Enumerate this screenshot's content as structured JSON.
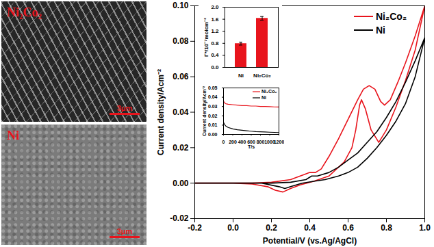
{
  "images": [
    {
      "label": "Ni₂Co₂",
      "scale_bar": "3μm"
    },
    {
      "label": "Ni",
      "scale_bar": "3μm"
    }
  ],
  "chart_data": [
    {
      "type": "line",
      "x_label": "Potential/V (vs.Ag/AgCl)",
      "y_label": "Current density/Acm⁻²",
      "xlim": [
        -0.2,
        1.0
      ],
      "xticks": [
        {
          "value": -0.2,
          "label": "-0.2"
        },
        {
          "value": 0.0,
          "label": "0.0"
        },
        {
          "value": 0.2,
          "label": "0.2"
        },
        {
          "value": 0.4,
          "label": "0.4"
        },
        {
          "value": 0.6,
          "label": "0.6"
        },
        {
          "value": 0.8,
          "label": "0.8"
        },
        {
          "value": 1.0,
          "label": "1.0"
        }
      ],
      "ylim": [
        -0.02,
        0.1
      ],
      "yticks": [
        {
          "value": -0.02,
          "label": "-0.02"
        },
        {
          "value": 0.0,
          "label": "0.00"
        },
        {
          "value": 0.02,
          "label": "0.02"
        },
        {
          "value": 0.04,
          "label": "0.04"
        },
        {
          "value": 0.06,
          "label": "0.06"
        },
        {
          "value": 0.08,
          "label": "0.08"
        },
        {
          "value": 0.1,
          "label": "0.10"
        }
      ],
      "legend": "top-right",
      "series": [
        {
          "name": "Ni₂Co₂",
          "color": "#e8141c",
          "x": [
            -0.2,
            -0.1,
            0.0,
            0.1,
            0.2,
            0.3,
            0.35,
            0.4,
            0.43,
            0.46,
            0.5,
            0.55,
            0.6,
            0.65,
            0.68,
            0.71,
            0.74,
            0.77,
            0.79,
            0.82,
            0.86,
            0.9,
            0.95,
            1.0,
            0.95,
            0.9,
            0.85,
            0.8,
            0.76,
            0.72,
            0.69,
            0.67,
            0.66,
            0.64,
            0.62,
            0.58,
            0.5,
            0.42,
            0.35,
            0.3,
            0.26,
            0.22,
            0.18,
            0.1,
            0.0,
            -0.2
          ],
          "values": [
            0,
            0,
            0,
            0,
            0.0005,
            0.002,
            0.004,
            0.006,
            0.006,
            0.008,
            0.015,
            0.025,
            0.036,
            0.047,
            0.053,
            0.055,
            0.053,
            0.046,
            0.044,
            0.047,
            0.057,
            0.068,
            0.083,
            0.1,
            0.075,
            0.058,
            0.043,
            0.03,
            0.023,
            0.03,
            0.042,
            0.047,
            0.044,
            0.03,
            0.02,
            0.012,
            0.004,
            0.001,
            -0.001,
            -0.003,
            -0.005,
            -0.004,
            -0.002,
            -0.0005,
            0,
            0
          ]
        },
        {
          "name": "Ni",
          "color": "#000000",
          "x": [
            -0.2,
            0.0,
            0.2,
            0.3,
            0.38,
            0.41,
            0.44,
            0.5,
            0.55,
            0.6,
            0.65,
            0.7,
            0.75,
            0.8,
            0.85,
            0.9,
            0.95,
            1.0,
            0.95,
            0.9,
            0.85,
            0.8,
            0.75,
            0.7,
            0.65,
            0.6,
            0.55,
            0.48,
            0.42,
            0.36,
            0.3,
            0.27,
            0.24,
            0.15,
            0.0,
            -0.2
          ],
          "values": [
            0,
            0,
            0,
            0.0005,
            0.002,
            0.004,
            0.004,
            0.006,
            0.009,
            0.013,
            0.017,
            0.023,
            0.029,
            0.037,
            0.046,
            0.057,
            0.069,
            0.082,
            0.06,
            0.045,
            0.035,
            0.027,
            0.02,
            0.014,
            0.009,
            0.006,
            0.004,
            0.002,
            0.001,
            0,
            -0.002,
            -0.003,
            -0.002,
            0,
            0,
            0
          ]
        }
      ]
    },
    {
      "type": "bar",
      "y_label": "Γ*/10⁻⁷molcm⁻²",
      "categories": [
        "Ni",
        "Ni₂Co₂"
      ],
      "values": [
        0.79,
        1.63
      ],
      "errors": [
        0.05,
        0.06
      ],
      "color": "#e8141c",
      "ylim": [
        0,
        2.0
      ],
      "yticks": [
        {
          "value": 0,
          "label": "0.0"
        },
        {
          "value": 0.4,
          "label": "0.4"
        },
        {
          "value": 0.8,
          "label": "0.8"
        },
        {
          "value": 1.2,
          "label": "1.2"
        },
        {
          "value": 1.6,
          "label": "1.6"
        },
        {
          "value": 2.0,
          "label": "2.0"
        }
      ]
    },
    {
      "type": "line",
      "x_label": "T/s",
      "y_label": "Current density/Acm⁻²",
      "x": [
        0,
        20,
        50,
        100,
        200,
        300,
        400,
        500,
        600,
        700,
        800,
        900,
        1000,
        1100,
        1200
      ],
      "xlim": [
        0,
        1200
      ],
      "xticks": [
        0,
        200,
        400,
        600,
        800,
        1000,
        1200
      ],
      "ylim": [
        0,
        0.05
      ],
      "yticks": [
        {
          "value": 0,
          "label": "0.00"
        },
        {
          "value": 0.01,
          "label": "0.01"
        },
        {
          "value": 0.02,
          "label": "0.02"
        },
        {
          "value": 0.03,
          "label": "0.03"
        },
        {
          "value": 0.04,
          "label": "0.04"
        },
        {
          "value": 0.05,
          "label": "0.05"
        }
      ],
      "legend": "top-right",
      "series": [
        {
          "name": "Ni₂Co₂",
          "color": "#e8141c",
          "values": [
            0.036,
            0.034,
            0.033,
            0.0325,
            0.032,
            0.0315,
            0.031,
            0.031,
            0.0305,
            0.0305,
            0.03,
            0.03,
            0.0298,
            0.0296,
            0.0295
          ]
        },
        {
          "name": "Ni",
          "color": "#000000",
          "values": [
            0.013,
            0.011,
            0.009,
            0.0075,
            0.006,
            0.005,
            0.0045,
            0.004,
            0.0035,
            0.003,
            0.0028,
            0.0026,
            0.0024,
            0.0022,
            0.002
          ]
        }
      ]
    }
  ]
}
